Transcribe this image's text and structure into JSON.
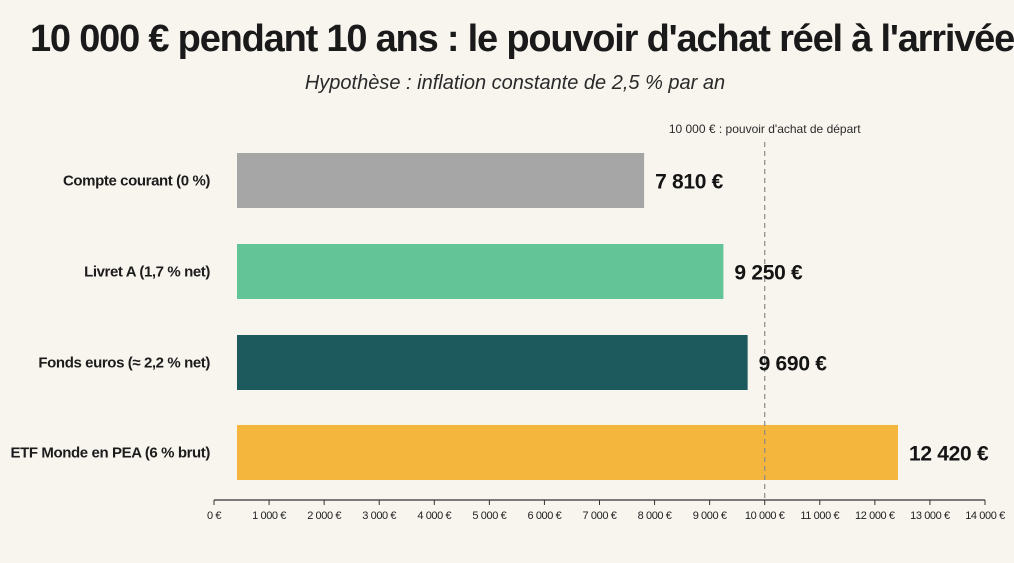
{
  "chart_data": {
    "type": "bar",
    "orientation": "horizontal",
    "title": "10 000 € pendant 10 ans : le pouvoir d'achat réel à l'arrivée",
    "subtitle": "Hypothèse : inflation constante de 2,5 % par an",
    "categories": [
      "Compte courant (0 %)",
      "Livret A (1,7 % net)",
      "Fonds euros (≈ 2,2 % net)",
      "ETF Monde en PEA (6 % brut)"
    ],
    "values": [
      7810,
      9250,
      9690,
      12420
    ],
    "value_labels": [
      "7 810 €",
      "9 250 €",
      "9 690 €",
      "12 420 €"
    ],
    "colors": [
      "#a6a6a6",
      "#62c497",
      "#1d5a5e",
      "#f4b63c"
    ],
    "xlim": [
      0,
      14000
    ],
    "x_ticks": [
      0,
      1000,
      2000,
      3000,
      4000,
      5000,
      6000,
      7000,
      8000,
      9000,
      10000,
      11000,
      12000,
      13000,
      14000
    ],
    "x_tick_labels": [
      "0 €",
      "1 000 €",
      "2 000 €",
      "3 000 €",
      "4 000 €",
      "5 000 €",
      "6 000 €",
      "7 000 €",
      "8 000 €",
      "9 000 €",
      "10 000 €",
      "11 000 €",
      "12 000 €",
      "13 000 €",
      "14 000 €"
    ],
    "reference_line": {
      "value": 10000,
      "label": "10 000 € : pouvoir d'achat de départ",
      "style": "dashed",
      "color": "#8a8a8a"
    },
    "grid": false,
    "legend": "none",
    "xlabel": "",
    "ylabel": ""
  }
}
